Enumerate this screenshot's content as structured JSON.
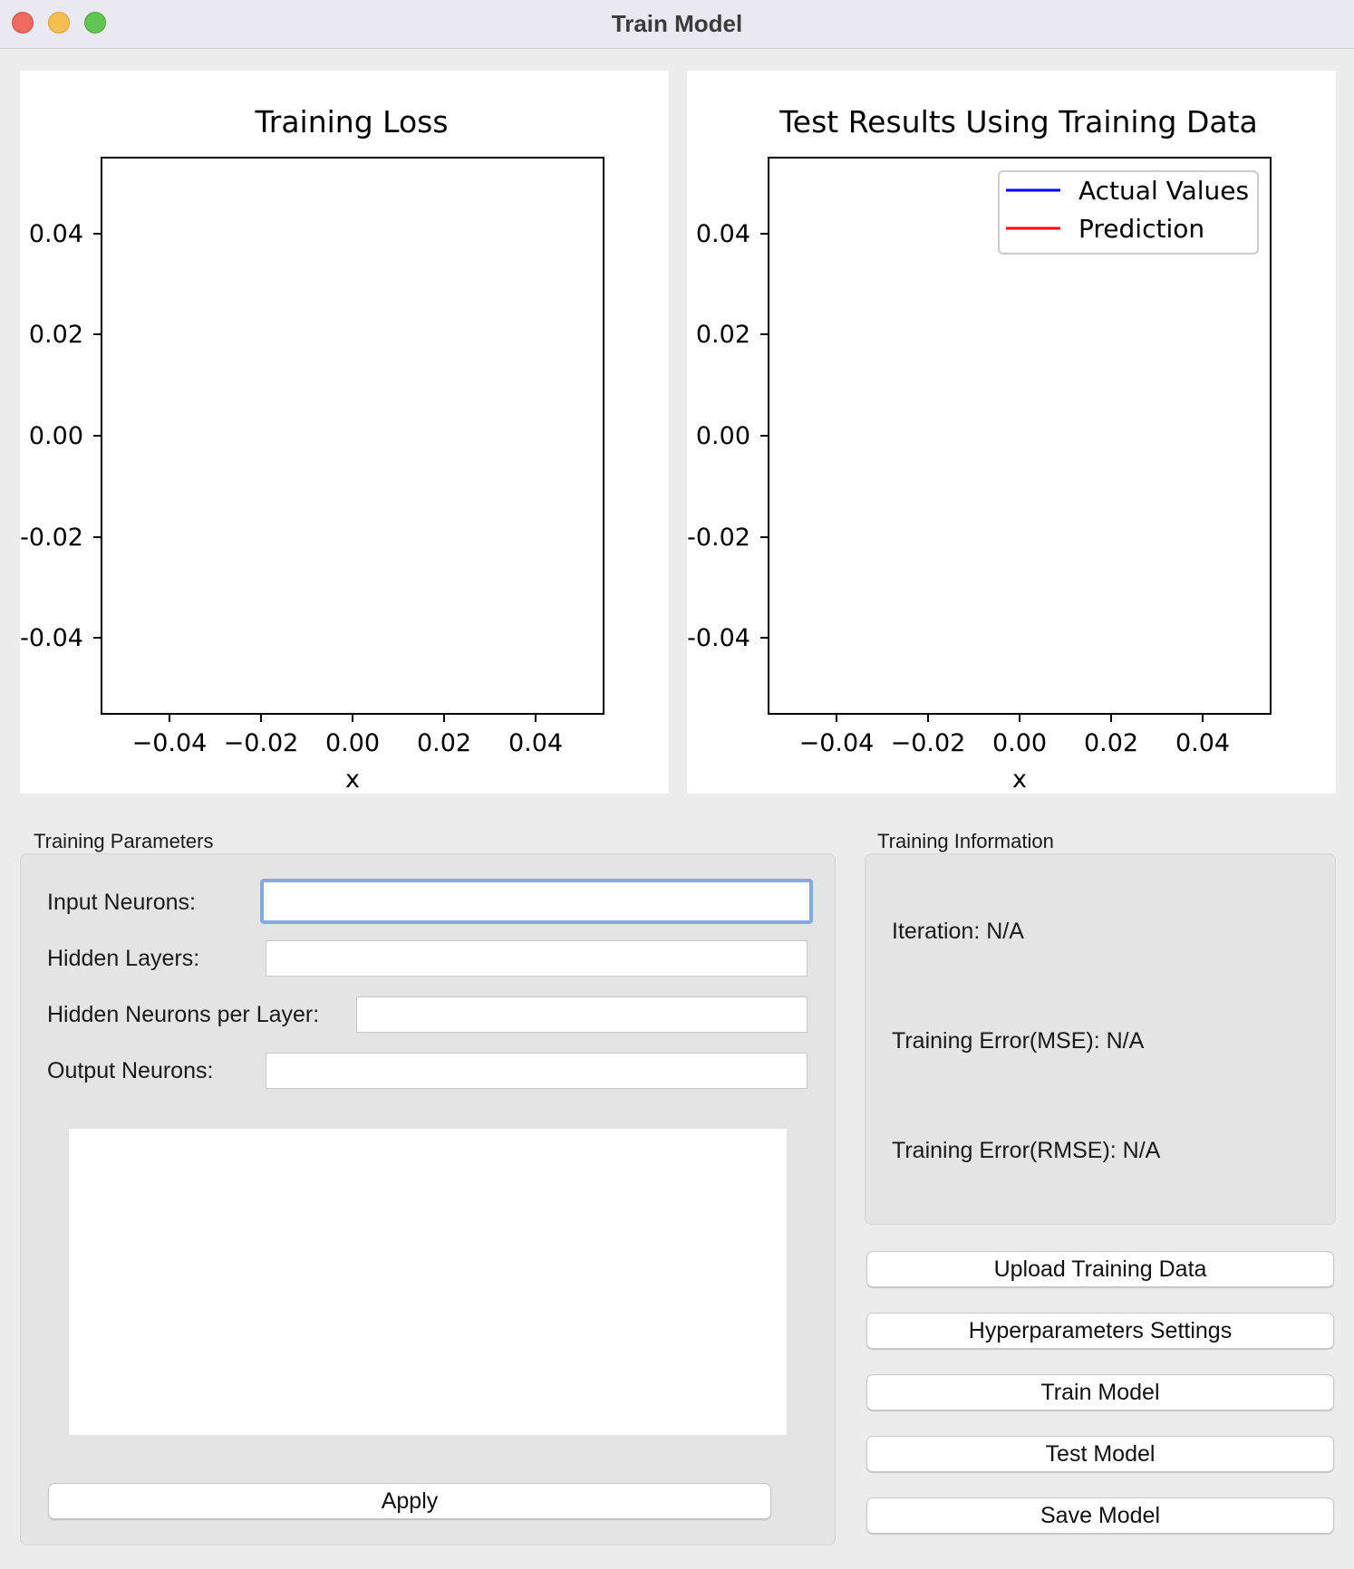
{
  "window": {
    "title": "Train Model"
  },
  "plots": {
    "training_loss": {
      "title": "Training Loss",
      "xlabel": "x",
      "xticks": [
        "−0.04",
        "−0.02",
        "0.00",
        "0.02",
        "0.04"
      ],
      "yticks": [
        "0.04",
        "0.02",
        "0.00",
        "-0.02",
        "-0.04"
      ]
    },
    "test_results": {
      "title": "Test Results Using Training Data",
      "xlabel": "x",
      "xticks": [
        "−0.04",
        "−0.02",
        "0.00",
        "0.02",
        "0.04"
      ],
      "yticks": [
        "0.04",
        "0.02",
        "0.00",
        "-0.02",
        "-0.04"
      ],
      "legend": [
        {
          "label": "Actual Values",
          "color": "#0000ff"
        },
        {
          "label": "Prediction",
          "color": "#ff0000"
        }
      ]
    }
  },
  "chart_data": [
    {
      "type": "line",
      "title": "Training Loss",
      "xlabel": "x",
      "ylabel": "",
      "xlim": [
        -0.055,
        0.055
      ],
      "ylim": [
        -0.055,
        0.055
      ],
      "series": []
    },
    {
      "type": "line",
      "title": "Test Results Using Training Data",
      "xlabel": "x",
      "ylabel": "",
      "xlim": [
        -0.055,
        0.055
      ],
      "ylim": [
        -0.055,
        0.055
      ],
      "legend_position": "top-right",
      "series": [
        {
          "name": "Actual Values",
          "color": "#0000ff",
          "x": [],
          "y": []
        },
        {
          "name": "Prediction",
          "color": "#ff0000",
          "x": [],
          "y": []
        }
      ]
    }
  ],
  "training_parameters": {
    "group_title": "Training Parameters",
    "fields": {
      "input_neurons": {
        "label": "Input Neurons:",
        "value": ""
      },
      "hidden_layers": {
        "label": "Hidden Layers:",
        "value": ""
      },
      "hidden_neurons": {
        "label": "Hidden Neurons per Layer:",
        "value": ""
      },
      "output_neurons": {
        "label": "Output Neurons:",
        "value": ""
      }
    },
    "apply_label": "Apply"
  },
  "training_information": {
    "group_title": "Training Information",
    "iteration": "Iteration: N/A",
    "mse": "Training Error(MSE): N/A",
    "rmse": "Training Error(RMSE): N/A"
  },
  "actions": {
    "upload": "Upload Training Data",
    "hyperparameters": "Hyperparameters Settings",
    "train": "Train Model",
    "test": "Test Model",
    "save": "Save Model"
  }
}
